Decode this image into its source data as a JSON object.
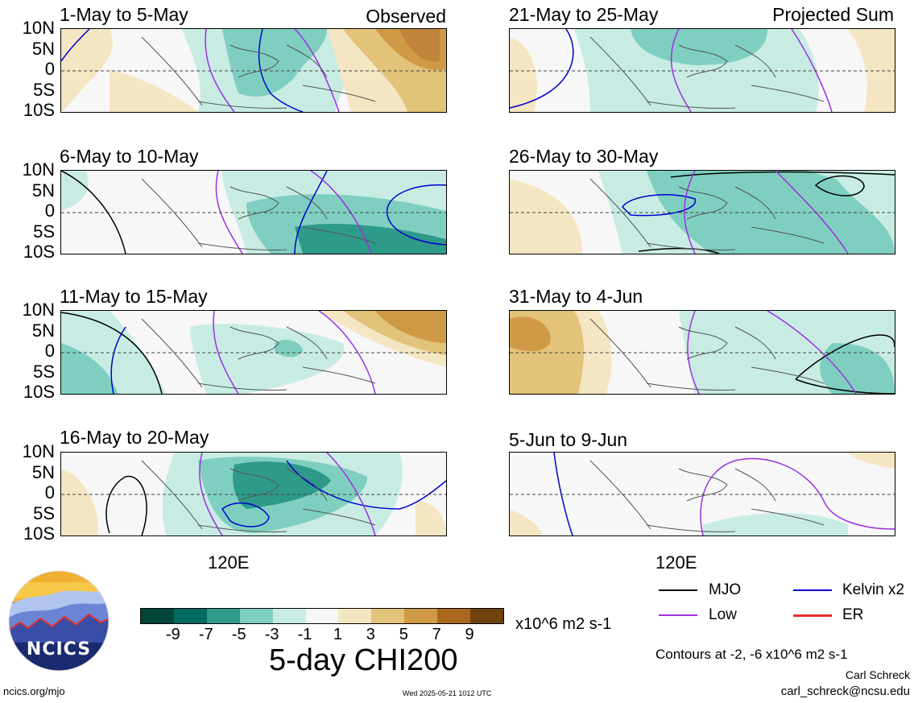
{
  "colors": {
    "neg_9": "#00443a",
    "neg_7": "#006b5f",
    "neg_5": "#2e9a89",
    "neg_3": "#7fcfc0",
    "neg_1": "#c8ece4",
    "neutral": "#f7f7f7",
    "pos_1": "#f4e6c2",
    "pos_3": "#e3c27a",
    "pos_5": "#cf9a45",
    "pos_7": "#a8681e",
    "pos_9": "#6e420d",
    "mjo": "#000000",
    "kelvin": "#0000cc",
    "low": "#9b30e0",
    "er": "#e03030",
    "coast": "#555555"
  },
  "observed_label": "Observed",
  "projected_label": "Projected Sum",
  "panels_left": [
    {
      "title": "1-May to 5-May"
    },
    {
      "title": "6-May to 10-May"
    },
    {
      "title": "11-May to 15-May"
    },
    {
      "title": "16-May to 20-May"
    }
  ],
  "panels_right": [
    {
      "title": "21-May to 25-May"
    },
    {
      "title": "26-May to 30-May"
    },
    {
      "title": "31-May to 4-Jun"
    },
    {
      "title": "5-Jun to 9-Jun"
    }
  ],
  "lat_ticks": [
    "10N",
    "5N",
    "0",
    "5S",
    "10S"
  ],
  "lon_label": "120E",
  "colorbar": {
    "ticks": [
      "-9",
      "-7",
      "-5",
      "-3",
      "-1",
      "1",
      "3",
      "5",
      "7",
      "9"
    ],
    "units": "x10^6 m2 s-1",
    "title": "5-day CHI200"
  },
  "legend": {
    "mjo": "MJO",
    "kelvin": "Kelvin x2",
    "low": "Low",
    "er": "ER",
    "contours_note": "Contours at -2, -6 x10^6 m2 s-1"
  },
  "logo_text": "NCICS",
  "footer": {
    "url": "ncics.org/mjo",
    "timestamp": "Wed 2025-05-21 1012 UTC",
    "author": "Carl Schreck",
    "email": "carl_schreck@ncsu.edu"
  }
}
